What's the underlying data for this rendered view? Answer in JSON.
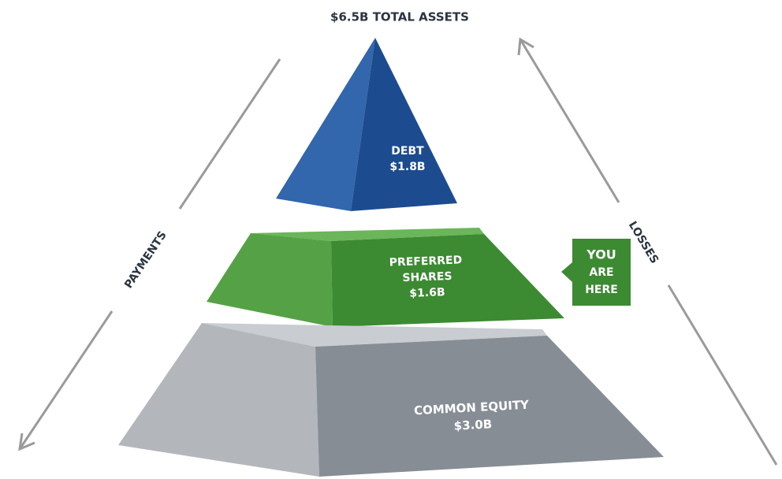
{
  "title": "$6.5B TOTAL ASSETS",
  "tiers": [
    {
      "name_lines": [
        "DEBT"
      ],
      "amount": "$1.8B"
    },
    {
      "name_lines": [
        "PREFERRED",
        "SHARES"
      ],
      "amount": "$1.6B"
    },
    {
      "name_lines": [
        "COMMON EQUITY"
      ],
      "amount": "$3.0B"
    }
  ],
  "callout": {
    "lines": [
      "YOU",
      "ARE",
      "HERE"
    ]
  },
  "arrows": {
    "left": "PAYMENTS",
    "right": "LOSSES"
  }
}
